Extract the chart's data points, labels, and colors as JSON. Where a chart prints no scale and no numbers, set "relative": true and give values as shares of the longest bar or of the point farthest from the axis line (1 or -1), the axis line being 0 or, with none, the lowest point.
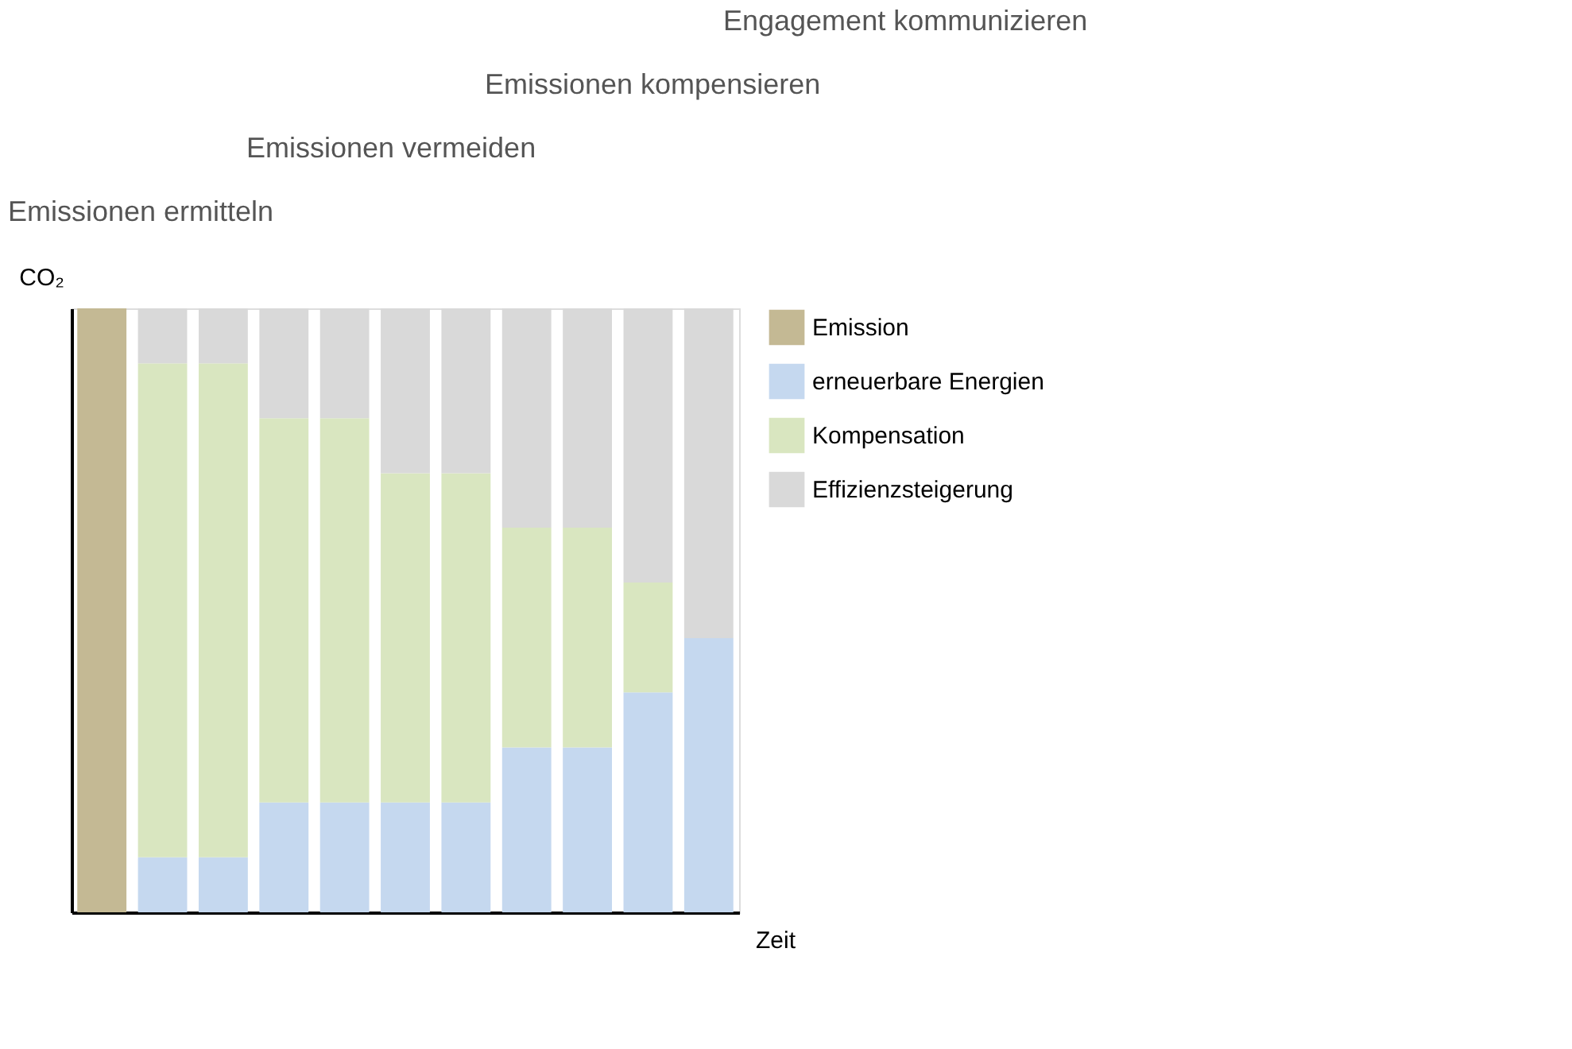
{
  "chart_data": {
    "type": "bar",
    "stacked": true,
    "relative": true,
    "xlabel": "Zeit",
    "ylabel": "CO₂",
    "categories": [
      null,
      null,
      null,
      null,
      null,
      null,
      null,
      null,
      null,
      null,
      null
    ],
    "series": [
      {
        "name": "Emission",
        "color": "#c4b994",
        "values": [
          1,
          0,
          0,
          0,
          0,
          0,
          0,
          0,
          0,
          0,
          0
        ]
      },
      {
        "name": "erneuerbare Energien",
        "color": "#c5d8ef",
        "values": [
          0,
          0.091,
          0.091,
          0.182,
          0.182,
          0.182,
          0.182,
          0.273,
          0.273,
          0.364,
          0.454
        ]
      },
      {
        "name": "Kompensation",
        "color": "#d9e6c0",
        "values": [
          0,
          0.818,
          0.818,
          0.636,
          0.636,
          0.545,
          0.545,
          0.364,
          0.364,
          0.182,
          0
        ]
      },
      {
        "name": "Effizienzsteigerung",
        "color": "#d9d9d9",
        "values": [
          0,
          0.091,
          0.091,
          0.182,
          0.182,
          0.273,
          0.273,
          0.363,
          0.363,
          0.454,
          0.546
        ]
      }
    ],
    "annotations": [
      "Emissionen ermitteln",
      "Emissionen vermeiden",
      "Emissionen kompensieren",
      "Engagement kommunizieren"
    ],
    "legend": "right",
    "tick_labels": false
  }
}
